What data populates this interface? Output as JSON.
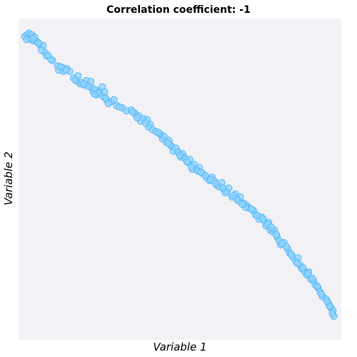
{
  "chart_data": {
    "type": "scatter",
    "title": "Correlation coefficient: -1",
    "xlabel": "Variable 1",
    "ylabel": "Variable 2",
    "grid": false,
    "xlim": [
      0,
      1
    ],
    "ylim": [
      0,
      1
    ],
    "marker_fill": "#8dd3ff",
    "marker_stroke": "#5bb8f5",
    "background": "#f2f1f5",
    "points": [
      [
        0.004,
        0.962
      ],
      [
        0.011,
        0.967
      ],
      [
        0.017,
        0.973
      ],
      [
        0.02,
        0.954
      ],
      [
        0.026,
        0.968
      ],
      [
        0.031,
        0.948
      ],
      [
        0.036,
        0.96
      ],
      [
        0.042,
        0.946
      ],
      [
        0.052,
        0.935
      ],
      [
        0.063,
        0.932
      ],
      [
        0.068,
        0.91
      ],
      [
        0.074,
        0.898
      ],
      [
        0.093,
        0.883
      ],
      [
        0.11,
        0.865
      ],
      [
        0.113,
        0.851
      ],
      [
        0.124,
        0.86
      ],
      [
        0.139,
        0.856
      ],
      [
        0.148,
        0.847
      ],
      [
        0.161,
        0.825
      ],
      [
        0.171,
        0.816
      ],
      [
        0.175,
        0.832
      ],
      [
        0.182,
        0.806
      ],
      [
        0.197,
        0.802
      ],
      [
        0.202,
        0.817
      ],
      [
        0.216,
        0.814
      ],
      [
        0.219,
        0.793
      ],
      [
        0.225,
        0.779
      ],
      [
        0.231,
        0.787
      ],
      [
        0.235,
        0.77
      ],
      [
        0.245,
        0.782
      ],
      [
        0.253,
        0.796
      ],
      [
        0.256,
        0.764
      ],
      [
        0.261,
        0.779
      ],
      [
        0.268,
        0.752
      ],
      [
        0.28,
        0.746
      ],
      [
        0.291,
        0.754
      ],
      [
        0.3,
        0.734
      ],
      [
        0.331,
        0.717
      ],
      [
        0.347,
        0.72
      ],
      [
        0.356,
        0.711
      ],
      [
        0.361,
        0.705
      ],
      [
        0.372,
        0.7
      ],
      [
        0.377,
        0.683
      ],
      [
        0.386,
        0.691
      ],
      [
        0.398,
        0.688
      ],
      [
        0.408,
        0.672
      ],
      [
        0.414,
        0.656
      ],
      [
        0.426,
        0.649
      ],
      [
        0.441,
        0.639
      ],
      [
        0.448,
        0.624
      ],
      [
        0.452,
        0.633
      ],
      [
        0.46,
        0.614
      ],
      [
        0.468,
        0.62
      ],
      [
        0.477,
        0.6
      ],
      [
        0.482,
        0.584
      ],
      [
        0.491,
        0.594
      ],
      [
        0.5,
        0.577
      ],
      [
        0.506,
        0.565
      ],
      [
        0.512,
        0.575
      ],
      [
        0.517,
        0.564
      ],
      [
        0.522,
        0.557
      ],
      [
        0.529,
        0.547
      ],
      [
        0.535,
        0.557
      ],
      [
        0.544,
        0.525
      ],
      [
        0.55,
        0.54
      ],
      [
        0.557,
        0.524
      ],
      [
        0.566,
        0.53
      ],
      [
        0.576,
        0.511
      ],
      [
        0.59,
        0.496
      ],
      [
        0.599,
        0.488
      ],
      [
        0.607,
        0.498
      ],
      [
        0.614,
        0.486
      ],
      [
        0.623,
        0.472
      ],
      [
        0.629,
        0.467
      ],
      [
        0.638,
        0.48
      ],
      [
        0.646,
        0.456
      ],
      [
        0.654,
        0.452
      ],
      [
        0.661,
        0.462
      ],
      [
        0.671,
        0.434
      ],
      [
        0.682,
        0.443
      ],
      [
        0.691,
        0.421
      ],
      [
        0.698,
        0.433
      ],
      [
        0.709,
        0.412
      ],
      [
        0.719,
        0.405
      ],
      [
        0.726,
        0.397
      ],
      [
        0.74,
        0.388
      ],
      [
        0.747,
        0.375
      ],
      [
        0.758,
        0.36
      ],
      [
        0.766,
        0.367
      ],
      [
        0.773,
        0.356
      ],
      [
        0.781,
        0.338
      ],
      [
        0.789,
        0.35
      ],
      [
        0.794,
        0.325
      ],
      [
        0.802,
        0.318
      ],
      [
        0.808,
        0.325
      ],
      [
        0.816,
        0.302
      ],
      [
        0.822,
        0.289
      ],
      [
        0.828,
        0.276
      ],
      [
        0.838,
        0.283
      ],
      [
        0.85,
        0.262
      ],
      [
        0.857,
        0.248
      ],
      [
        0.866,
        0.236
      ],
      [
        0.876,
        0.222
      ],
      [
        0.884,
        0.232
      ],
      [
        0.891,
        0.208
      ],
      [
        0.896,
        0.196
      ],
      [
        0.905,
        0.188
      ],
      [
        0.912,
        0.176
      ],
      [
        0.918,
        0.186
      ],
      [
        0.925,
        0.162
      ],
      [
        0.934,
        0.155
      ],
      [
        0.941,
        0.142
      ],
      [
        0.948,
        0.134
      ],
      [
        0.955,
        0.12
      ],
      [
        0.963,
        0.105
      ],
      [
        0.974,
        0.097
      ],
      [
        0.983,
        0.081
      ],
      [
        0.99,
        0.068
      ],
      [
        0.996,
        0.058
      ],
      [
        0.999,
        0.041
      ],
      [
        0.01,
        0.952
      ],
      [
        0.048,
        0.94
      ],
      [
        0.088,
        0.887
      ],
      [
        0.128,
        0.848
      ],
      [
        0.166,
        0.819
      ],
      [
        0.208,
        0.798
      ],
      [
        0.241,
        0.776
      ],
      [
        0.273,
        0.741
      ],
      [
        0.318,
        0.727
      ],
      [
        0.366,
        0.694
      ],
      [
        0.402,
        0.664
      ],
      [
        0.437,
        0.642
      ],
      [
        0.471,
        0.606
      ],
      [
        0.497,
        0.582
      ],
      [
        0.526,
        0.549
      ],
      [
        0.561,
        0.519
      ],
      [
        0.585,
        0.504
      ],
      [
        0.618,
        0.478
      ],
      [
        0.65,
        0.447
      ],
      [
        0.686,
        0.428
      ],
      [
        0.715,
        0.399
      ],
      [
        0.752,
        0.372
      ],
      [
        0.786,
        0.343
      ],
      [
        0.813,
        0.31
      ],
      [
        0.846,
        0.27
      ],
      [
        0.881,
        0.215
      ],
      [
        0.915,
        0.181
      ],
      [
        0.946,
        0.139
      ],
      [
        0.978,
        0.089
      ],
      [
        0.994,
        0.05
      ],
      [
        0.03,
        0.955
      ],
      [
        0.079,
        0.9
      ],
      [
        0.136,
        0.852
      ],
      [
        0.187,
        0.81
      ],
      [
        0.229,
        0.772
      ],
      [
        0.264,
        0.76
      ],
      [
        0.309,
        0.73
      ],
      [
        0.351,
        0.714
      ],
      [
        0.393,
        0.677
      ],
      [
        0.433,
        0.646
      ],
      [
        0.465,
        0.611
      ],
      [
        0.504,
        0.571
      ],
      [
        0.54,
        0.533
      ],
      [
        0.571,
        0.515
      ],
      [
        0.603,
        0.491
      ],
      [
        0.642,
        0.463
      ],
      [
        0.676,
        0.438
      ],
      [
        0.704,
        0.409
      ],
      [
        0.734,
        0.393
      ],
      [
        0.77,
        0.362
      ],
      [
        0.798,
        0.333
      ],
      [
        0.832,
        0.28
      ],
      [
        0.862,
        0.244
      ],
      [
        0.9,
        0.2
      ],
      [
        0.93,
        0.165
      ],
      [
        0.959,
        0.113
      ],
      [
        0.986,
        0.073
      ],
      [
        0.058,
        0.917
      ],
      [
        0.119,
        0.862
      ],
      [
        0.193,
        0.805
      ]
    ]
  }
}
